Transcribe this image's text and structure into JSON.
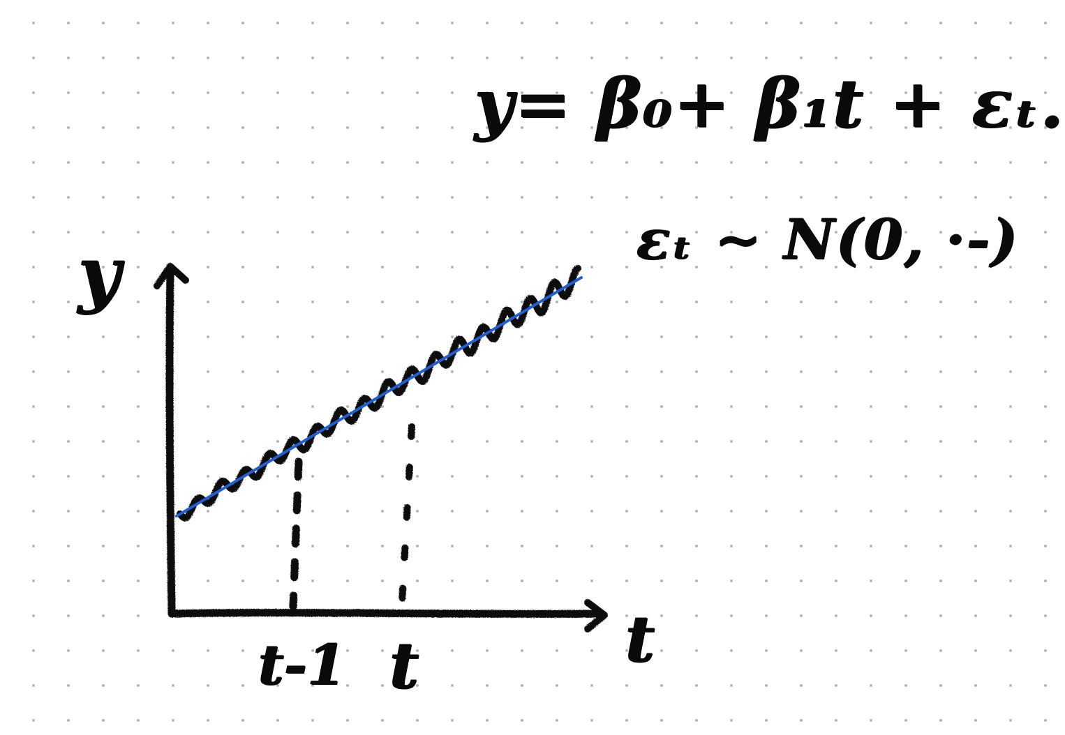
{
  "equation": "y= β₀+ β₁t + εₜ.",
  "noise_assumption": "εₜ ~ N(0, ·-)",
  "axis": {
    "y_label": "y",
    "x_label": "t"
  },
  "ticks": [
    {
      "label": "t-1",
      "position": 0.3
    },
    {
      "label": "t",
      "position": 0.57
    }
  ],
  "colors": {
    "ink": "#0a0a0a",
    "fit_line": "#1f5fd6",
    "grid_dot": "#b4b4b4"
  }
}
